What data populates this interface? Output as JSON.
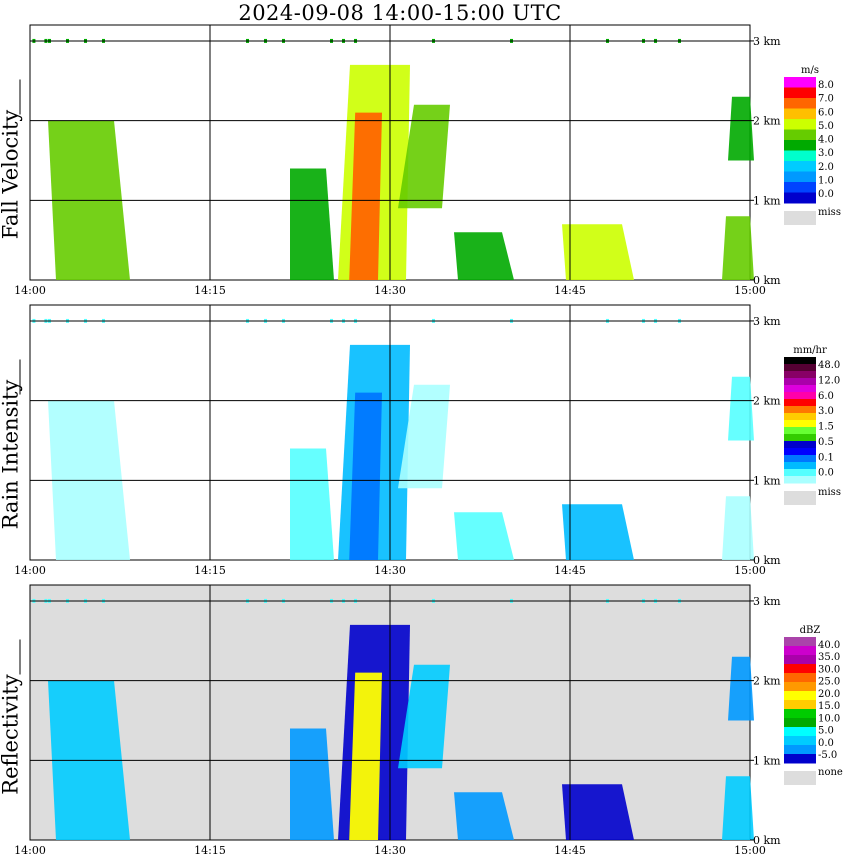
{
  "title": "2024-09-08   14:00-15:00 UTC",
  "chart_data": [
    {
      "type": "heatmap",
      "ylabel": "Fall Velocity",
      "x_ticks": [
        "14:00",
        "14:15",
        "14:30",
        "14:45",
        "15:00"
      ],
      "y_ticks": [
        "0 km",
        "1 km",
        "2 km",
        "3 km"
      ],
      "xlim": [
        "14:00",
        "15:00"
      ],
      "ylim": [
        0,
        3.2
      ],
      "grid": true,
      "background": "#ffffff",
      "legend": {
        "unit": "m/s",
        "colors": [
          "#ff00ff",
          "#ff0000",
          "#ff6600",
          "#ffbf00",
          "#ccff00",
          "#66cc00",
          "#00aa00",
          "#00ffcc",
          "#00ccff",
          "#0099ff",
          "#0044ff",
          "#0000cc"
        ],
        "labels": [
          "8.0",
          "7.0",
          "6.0",
          "5.0",
          "4.0",
          "3.0",
          "2.0",
          "1.0",
          "0.0"
        ],
        "miss_label": "miss",
        "miss_color": "#dddddd"
      }
    },
    {
      "type": "heatmap",
      "ylabel": "Rain Intensity",
      "x_ticks": [
        "14:00",
        "14:15",
        "14:30",
        "14:45",
        "15:00"
      ],
      "y_ticks": [
        "0 km",
        "1 km",
        "2 km",
        "3 km"
      ],
      "xlim": [
        "14:00",
        "15:00"
      ],
      "ylim": [
        0,
        3.2
      ],
      "grid": true,
      "background": "#ffffff",
      "legend": {
        "unit": "mm/hr",
        "colors": [
          "#000000",
          "#550033",
          "#880066",
          "#aa00aa",
          "#dd00dd",
          "#ff00aa",
          "#ff0000",
          "#ff7700",
          "#ffcc00",
          "#ffff00",
          "#66ff33",
          "#33cc00",
          "#0000cc",
          "#0000ff",
          "#0077ff",
          "#00bbff",
          "#55ffff",
          "#aaffff"
        ],
        "labels": [
          "48.0",
          "12.0",
          "6.0",
          "3.0",
          "1.5",
          "0.5",
          "0.1",
          "0.0"
        ],
        "miss_label": "miss",
        "miss_color": "#dddddd"
      }
    },
    {
      "type": "heatmap",
      "ylabel": "Reflectivity",
      "x_ticks": [
        "14:00",
        "14:15",
        "14:30",
        "14:45",
        "15:00"
      ],
      "y_ticks": [
        "0 km",
        "1 km",
        "2 km",
        "3 km"
      ],
      "xlim": [
        "14:00",
        "15:00"
      ],
      "ylim": [
        0,
        3.2
      ],
      "grid": true,
      "background": "#dddddd",
      "legend": {
        "unit": "dBZ",
        "colors": [
          "#aa44aa",
          "#cc00cc",
          "#aa00aa",
          "#ff0000",
          "#ff6600",
          "#ff9900",
          "#ffff00",
          "#ffcc00",
          "#00cc00",
          "#00aa00",
          "#00ffff",
          "#00ccff",
          "#0099ff",
          "#0000cc"
        ],
        "labels": [
          "40.0",
          "35.0",
          "30.0",
          "25.0",
          "20.0",
          "15.0",
          "10.0",
          "5.0",
          "0.0",
          "-5.0"
        ],
        "miss_label": "none",
        "miss_color": "#dddddd"
      }
    }
  ]
}
